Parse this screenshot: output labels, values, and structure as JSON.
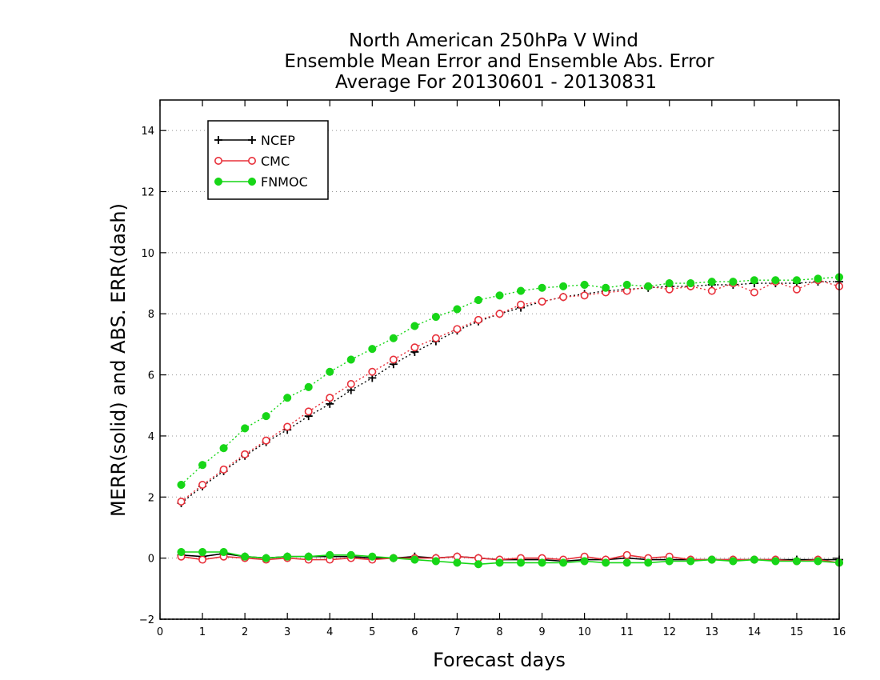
{
  "chart_data": {
    "type": "line",
    "title_lines": [
      "North American 250hPa V Wind",
      "Ensemble Mean Error and Ensemble Abs. Error",
      "Average For 20130601 - 20130831"
    ],
    "xlabel": "Forecast days",
    "ylabel": "MERR(solid) and ABS. ERR(dash)",
    "xlim": [
      0,
      16
    ],
    "ylim": [
      -2,
      15
    ],
    "xticks": [
      0,
      1,
      2,
      3,
      4,
      5,
      6,
      7,
      8,
      9,
      10,
      11,
      12,
      13,
      14,
      15,
      16
    ],
    "yticks": [
      -2,
      0,
      2,
      4,
      6,
      8,
      10,
      12,
      14
    ],
    "grid": "horizontal-dotted",
    "legend_position": "top-left",
    "x": [
      0.5,
      1,
      1.5,
      2,
      2.5,
      3,
      3.5,
      4,
      4.5,
      5,
      5.5,
      6,
      6.5,
      7,
      7.5,
      8,
      8.5,
      9,
      9.5,
      10,
      10.5,
      11,
      11.5,
      12,
      12.5,
      13,
      13.5,
      14,
      14.5,
      15,
      15.5,
      16
    ],
    "series": [
      {
        "name": "NCEP",
        "color": "#000000",
        "marker": "plus",
        "mean_error": [
          0.1,
          0.05,
          0.15,
          0.05,
          0.0,
          0.05,
          0.05,
          0.05,
          0.05,
          0.0,
          0.0,
          0.05,
          0.0,
          0.05,
          0.0,
          -0.05,
          -0.05,
          -0.05,
          -0.1,
          -0.05,
          -0.05,
          0.0,
          -0.05,
          -0.05,
          -0.05,
          -0.05,
          -0.05,
          -0.05,
          -0.05,
          -0.05,
          -0.05,
          -0.05
        ],
        "abs_error": [
          1.8,
          2.35,
          2.85,
          3.35,
          3.8,
          4.2,
          4.65,
          5.05,
          5.5,
          5.9,
          6.35,
          6.75,
          7.1,
          7.45,
          7.75,
          8.0,
          8.2,
          8.4,
          8.55,
          8.65,
          8.75,
          8.8,
          8.85,
          8.9,
          8.9,
          8.95,
          8.95,
          9.0,
          9.0,
          9.0,
          9.05,
          9.05
        ]
      },
      {
        "name": "CMC",
        "color": "#e8303a",
        "marker": "open-circle",
        "mean_error": [
          0.05,
          -0.05,
          0.05,
          0.0,
          -0.05,
          0.0,
          -0.05,
          -0.05,
          0.0,
          -0.05,
          0.0,
          0.0,
          0.0,
          0.05,
          0.0,
          -0.05,
          0.0,
          0.0,
          -0.05,
          0.05,
          -0.05,
          0.1,
          0.0,
          0.05,
          -0.05,
          -0.05,
          -0.05,
          -0.05,
          -0.05,
          -0.1,
          -0.05,
          -0.15
        ],
        "abs_error": [
          1.85,
          2.4,
          2.9,
          3.4,
          3.85,
          4.3,
          4.8,
          5.25,
          5.7,
          6.1,
          6.5,
          6.9,
          7.2,
          7.5,
          7.8,
          8.0,
          8.3,
          8.4,
          8.55,
          8.6,
          8.7,
          8.75,
          8.9,
          8.8,
          8.9,
          8.75,
          9.0,
          8.7,
          9.05,
          8.8,
          9.1,
          8.9
        ]
      },
      {
        "name": "FNMOC",
        "color": "#17d617",
        "marker": "filled-circle",
        "mean_error": [
          0.2,
          0.2,
          0.2,
          0.05,
          0.0,
          0.05,
          0.05,
          0.1,
          0.1,
          0.05,
          0.0,
          -0.05,
          -0.1,
          -0.15,
          -0.2,
          -0.15,
          -0.15,
          -0.15,
          -0.15,
          -0.1,
          -0.15,
          -0.15,
          -0.15,
          -0.1,
          -0.1,
          -0.05,
          -0.1,
          -0.05,
          -0.1,
          -0.1,
          -0.1,
          -0.15
        ],
        "abs_error": [
          2.4,
          3.05,
          3.6,
          4.25,
          4.65,
          5.25,
          5.6,
          6.1,
          6.5,
          6.85,
          7.2,
          7.6,
          7.9,
          8.15,
          8.45,
          8.6,
          8.75,
          8.85,
          8.9,
          8.95,
          8.85,
          8.95,
          8.9,
          9.0,
          9.0,
          9.05,
          9.05,
          9.1,
          9.1,
          9.1,
          9.15,
          9.2
        ]
      }
    ]
  }
}
